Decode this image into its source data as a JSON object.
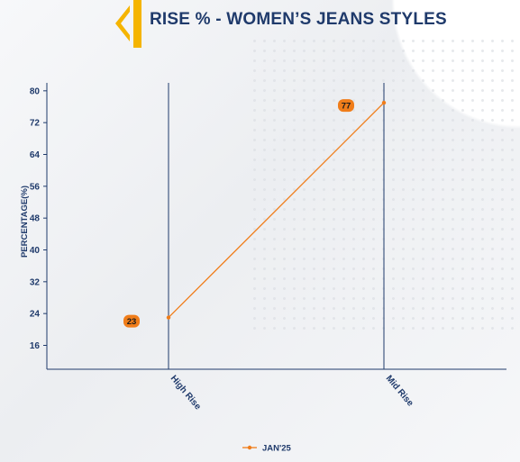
{
  "header": {
    "title": "RISE % - WOMEN’S JEANS STYLES"
  },
  "colors": {
    "accent": "#f5b400",
    "title": "#1f3a6b",
    "series": "#f07d1a",
    "axis": "#1f3a6b"
  },
  "chart_data": {
    "type": "line",
    "title": "RISE % - WOMEN’S JEANS STYLES",
    "xlabel": "",
    "ylabel": "PERCENTAGE(%)",
    "categories": [
      "High Rise",
      "Mid Rise"
    ],
    "ylim": [
      10,
      82
    ],
    "yticks": [
      16,
      24,
      32,
      40,
      48,
      56,
      64,
      72,
      80
    ],
    "series": [
      {
        "name": "JAN'25",
        "values": [
          23,
          77
        ],
        "color": "#f07d1a"
      }
    ],
    "legend": "bottom-center",
    "grid": false
  }
}
